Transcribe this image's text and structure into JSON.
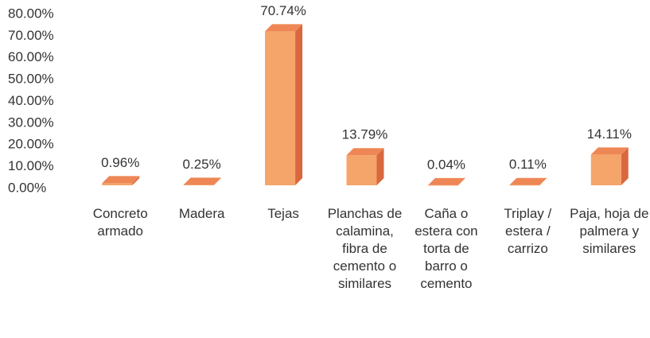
{
  "chart_data": {
    "type": "bar3d",
    "categories": [
      "Concreto armado",
      "Madera",
      "Tejas",
      "Planchas de calamina, fibra de cemento o similares",
      "Caña o estera con torta de barro o cemento",
      "Triplay / estera / carrizo",
      "Paja, hoja de palmera y similares"
    ],
    "values": [
      0.96,
      0.25,
      70.74,
      13.79,
      0.04,
      0.11,
      14.11
    ],
    "value_labels": [
      "0.96%",
      "0.25%",
      "70.74%",
      "13.79%",
      "0.04%",
      "0.11%",
      "14.11%"
    ],
    "color": "#f5a46a",
    "ylim": [
      0,
      80
    ],
    "yticks": [
      {
        "value": 0,
        "label": "0.00%"
      },
      {
        "value": 10,
        "label": "10.00%"
      },
      {
        "value": 20,
        "label": "20.00%"
      },
      {
        "value": 30,
        "label": "30.00%"
      },
      {
        "value": 40,
        "label": "40.00%"
      },
      {
        "value": 50,
        "label": "50.00%"
      },
      {
        "value": 60,
        "label": "60.00%"
      },
      {
        "value": 70,
        "label": "70.00%"
      },
      {
        "value": 80,
        "label": "80.00%"
      }
    ],
    "grid": false
  }
}
